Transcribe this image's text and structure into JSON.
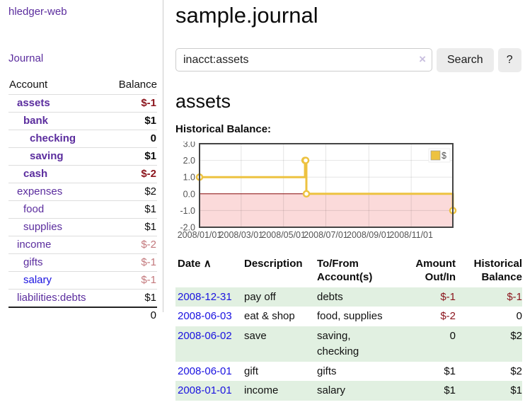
{
  "sidebar": {
    "brand": "hledger-web",
    "nav_journal": "Journal",
    "accounts_table": {
      "headers": {
        "account": "Account",
        "balance": "Balance"
      },
      "rows": [
        {
          "name": "assets",
          "indent": 1,
          "bold": true,
          "unvisited": false,
          "balance": "$-1",
          "tone": "negstrong"
        },
        {
          "name": "bank",
          "indent": 2,
          "bold": true,
          "unvisited": false,
          "balance": "$1",
          "tone": "dark"
        },
        {
          "name": "checking",
          "indent": 3,
          "bold": true,
          "unvisited": false,
          "balance": "0",
          "tone": "dark"
        },
        {
          "name": "saving",
          "indent": 3,
          "bold": true,
          "unvisited": false,
          "balance": "$1",
          "tone": "dark"
        },
        {
          "name": "cash",
          "indent": 2,
          "bold": true,
          "unvisited": false,
          "balance": "$-2",
          "tone": "negstrong"
        },
        {
          "name": "expenses",
          "indent": 1,
          "bold": false,
          "unvisited": false,
          "balance": "$2",
          "tone": "dark"
        },
        {
          "name": "food",
          "indent": 2,
          "bold": false,
          "unvisited": false,
          "balance": "$1",
          "tone": "dark"
        },
        {
          "name": "supplies",
          "indent": 2,
          "bold": false,
          "unvisited": false,
          "balance": "$1",
          "tone": "dark"
        },
        {
          "name": "income",
          "indent": 1,
          "bold": false,
          "unvisited": false,
          "balance": "$-2",
          "tone": "negsoft"
        },
        {
          "name": "gifts",
          "indent": 2,
          "bold": false,
          "unvisited": false,
          "balance": "$-1",
          "tone": "negsoft"
        },
        {
          "name": "salary",
          "indent": 2,
          "bold": false,
          "unvisited": true,
          "balance": "$-1",
          "tone": "negsoft"
        },
        {
          "name": "liabilities:debts",
          "indent": 1,
          "bold": false,
          "unvisited": false,
          "balance": "$1",
          "tone": "dark"
        }
      ],
      "total": "0"
    }
  },
  "header": {
    "title": "sample.journal"
  },
  "search": {
    "value": "inacct:assets",
    "clear_icon": "×",
    "button_label": "Search",
    "help_label": "?"
  },
  "account_page": {
    "heading": "assets",
    "chart_label": "Historical Balance:"
  },
  "chart_data": {
    "type": "line",
    "steps": true,
    "title": "Historical Balance",
    "xlabel": "",
    "ylabel": "",
    "ylim": [
      -2.0,
      3.0
    ],
    "x_range": [
      "2008-01-01",
      "2008-12-31"
    ],
    "grid": true,
    "legend_position": "top-right",
    "series": [
      {
        "name": "$",
        "color": "#edc240",
        "points": [
          [
            "2008-01-01",
            1
          ],
          [
            "2008-06-01",
            2
          ],
          [
            "2008-06-02",
            2
          ],
          [
            "2008-06-03",
            0
          ],
          [
            "2008-12-31",
            -1
          ]
        ]
      }
    ],
    "y_ticks": [
      "3.0",
      "2.0",
      "1.0",
      "0.0",
      "-1.0",
      "-2.0"
    ],
    "x_ticks": [
      {
        "date": "2008-01-01",
        "label": "2008/01/01"
      },
      {
        "date": "2008-03-01",
        "label": "2008/03/01"
      },
      {
        "date": "2008-05-01",
        "label": "2008/05/01"
      },
      {
        "date": "2008-07-01",
        "label": "2008/07/01"
      },
      {
        "date": "2008-09-01",
        "label": "2008/09/01"
      },
      {
        "date": "2008-11-01",
        "label": "2008/11/01"
      }
    ],
    "colors": {
      "negative_fill": "#fbdada",
      "zero_line": "#8c0d0d",
      "plot_border": "#444444"
    }
  },
  "register_table": {
    "headers": {
      "date": "Date",
      "sort_icon": "∧",
      "description": "Description",
      "tofrom": "To/From\nAccount(s)",
      "amount": "Amount\nOut/In",
      "balance": "Historical\nBalance"
    },
    "rows": [
      {
        "date": "2008-12-31",
        "description": "pay off",
        "accounts": "debts",
        "amount": "$-1",
        "amount_neg": true,
        "balance": "$-1",
        "balance_neg": true
      },
      {
        "date": "2008-06-03",
        "description": "eat & shop",
        "accounts": "food, supplies",
        "amount": "$-2",
        "amount_neg": true,
        "balance": "0",
        "balance_neg": false
      },
      {
        "date": "2008-06-02",
        "description": "save",
        "accounts": "saving, checking",
        "amount": "0",
        "amount_neg": false,
        "balance": "$2",
        "balance_neg": false
      },
      {
        "date": "2008-06-01",
        "description": "gift",
        "accounts": "gifts",
        "amount": "$1",
        "amount_neg": false,
        "balance": "$2",
        "balance_neg": false
      },
      {
        "date": "2008-01-01",
        "description": "income",
        "accounts": "salary",
        "amount": "$1",
        "amount_neg": false,
        "balance": "$1",
        "balance_neg": false
      }
    ]
  },
  "colors": {
    "link_purple": "#5b2d9e",
    "link_blue": "#1a12e0",
    "negative_strong": "#8b141c",
    "negative_soft": "#c3787c",
    "stripe_green": "#e1f0e1",
    "series_gold": "#edc240"
  }
}
